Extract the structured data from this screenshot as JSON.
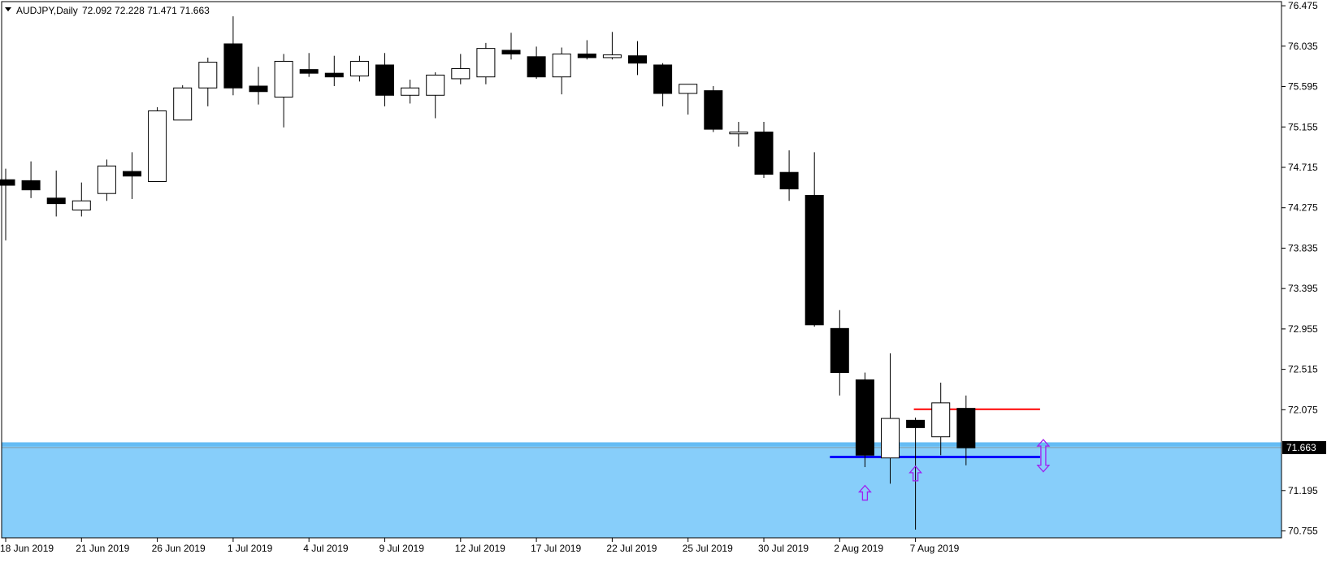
{
  "header": {
    "symbol": "AUDJPY,Daily",
    "ohlc": "72.092 72.228 71.471 71.663"
  },
  "colors": {
    "background": "#ffffff",
    "grid_frame": "#000000",
    "zone_fill": "#87cefa",
    "zone_edge": "#4fb0f0",
    "bull_body": "#ffffff",
    "bear_body": "#000000",
    "resistance_line": "#ff0000",
    "support_line": "#0000ff",
    "arrow_color": "#a020f0",
    "price_tag_bg": "#000000"
  },
  "chart_data": {
    "type": "candlestick",
    "ylim": [
      70.68,
      76.52
    ],
    "y_ticks": [
      "76.475",
      "76.035",
      "75.595",
      "75.155",
      "74.715",
      "74.275",
      "73.835",
      "73.395",
      "72.955",
      "72.515",
      "72.075",
      "71.663",
      "71.195",
      "70.755"
    ],
    "current_price": "71.663",
    "x_labels": [
      {
        "label": "18 Jun 2019",
        "index": 0
      },
      {
        "label": "21 Jun 2019",
        "index": 3
      },
      {
        "label": "26 Jun 2019",
        "index": 6
      },
      {
        "label": "1 Jul 2019",
        "index": 9
      },
      {
        "label": "4 Jul 2019",
        "index": 12
      },
      {
        "label": "9 Jul 2019",
        "index": 15
      },
      {
        "label": "12 Jul 2019",
        "index": 18
      },
      {
        "label": "17 Jul 2019",
        "index": 21
      },
      {
        "label": "22 Jul 2019",
        "index": 24
      },
      {
        "label": "25 Jul 2019",
        "index": 27
      },
      {
        "label": "30 Jul 2019",
        "index": 30
      },
      {
        "label": "2 Aug 2019",
        "index": 33
      },
      {
        "label": "7 Aug 2019",
        "index": 36
      }
    ],
    "candles": [
      {
        "o": 74.58,
        "h": 74.7,
        "l": 73.92,
        "c": 74.52
      },
      {
        "o": 74.57,
        "h": 74.78,
        "l": 74.38,
        "c": 74.47
      },
      {
        "o": 74.38,
        "h": 74.68,
        "l": 74.18,
        "c": 74.32
      },
      {
        "o": 74.25,
        "h": 74.55,
        "l": 74.18,
        "c": 74.35
      },
      {
        "o": 74.43,
        "h": 74.8,
        "l": 74.35,
        "c": 74.73
      },
      {
        "o": 74.67,
        "h": 74.88,
        "l": 74.37,
        "c": 74.62
      },
      {
        "o": 74.56,
        "h": 75.37,
        "l": 74.56,
        "c": 75.33
      },
      {
        "o": 75.23,
        "h": 75.61,
        "l": 75.23,
        "c": 75.58
      },
      {
        "o": 75.58,
        "h": 75.91,
        "l": 75.38,
        "c": 75.86
      },
      {
        "o": 76.06,
        "h": 76.36,
        "l": 75.5,
        "c": 75.58
      },
      {
        "o": 75.6,
        "h": 75.81,
        "l": 75.4,
        "c": 75.54
      },
      {
        "o": 75.48,
        "h": 75.95,
        "l": 75.15,
        "c": 75.87
      },
      {
        "o": 75.78,
        "h": 75.96,
        "l": 75.7,
        "c": 75.74
      },
      {
        "o": 75.74,
        "h": 75.93,
        "l": 75.6,
        "c": 75.7
      },
      {
        "o": 75.71,
        "h": 75.93,
        "l": 75.65,
        "c": 75.87
      },
      {
        "o": 75.83,
        "h": 75.96,
        "l": 75.38,
        "c": 75.5
      },
      {
        "o": 75.5,
        "h": 75.67,
        "l": 75.41,
        "c": 75.58
      },
      {
        "o": 75.5,
        "h": 75.75,
        "l": 75.25,
        "c": 75.72
      },
      {
        "o": 75.68,
        "h": 75.95,
        "l": 75.62,
        "c": 75.79
      },
      {
        "o": 75.7,
        "h": 76.07,
        "l": 75.62,
        "c": 76.01
      },
      {
        "o": 75.99,
        "h": 76.18,
        "l": 75.89,
        "c": 75.95
      },
      {
        "o": 75.92,
        "h": 76.03,
        "l": 75.68,
        "c": 75.7
      },
      {
        "o": 75.7,
        "h": 76.02,
        "l": 75.51,
        "c": 75.95
      },
      {
        "o": 75.95,
        "h": 76.1,
        "l": 75.89,
        "c": 75.91
      },
      {
        "o": 75.91,
        "h": 76.19,
        "l": 75.89,
        "c": 75.94
      },
      {
        "o": 75.93,
        "h": 76.09,
        "l": 75.72,
        "c": 75.85
      },
      {
        "o": 75.83,
        "h": 75.85,
        "l": 75.38,
        "c": 75.52
      },
      {
        "o": 75.52,
        "h": 75.6,
        "l": 75.29,
        "c": 75.62
      },
      {
        "o": 75.55,
        "h": 75.6,
        "l": 75.1,
        "c": 75.13
      },
      {
        "o": 75.08,
        "h": 75.21,
        "l": 74.94,
        "c": 75.1
      },
      {
        "o": 75.1,
        "h": 75.21,
        "l": 74.6,
        "c": 74.64
      },
      {
        "o": 74.66,
        "h": 74.9,
        "l": 74.35,
        "c": 74.48
      },
      {
        "o": 74.41,
        "h": 74.88,
        "l": 72.98,
        "c": 73.0
      },
      {
        "o": 72.96,
        "h": 73.16,
        "l": 72.23,
        "c": 72.48
      },
      {
        "o": 72.4,
        "h": 72.48,
        "l": 71.45,
        "c": 71.58
      },
      {
        "o": 71.55,
        "h": 72.69,
        "l": 71.27,
        "c": 71.98
      },
      {
        "o": 71.96,
        "h": 71.99,
        "l": 70.77,
        "c": 71.88
      },
      {
        "o": 71.78,
        "h": 72.37,
        "l": 71.58,
        "c": 72.15
      },
      {
        "o": 72.09,
        "h": 72.23,
        "l": 71.47,
        "c": 71.66
      }
    ],
    "demand_zone": {
      "top": 71.72,
      "bottom": 70.68
    },
    "resistance_level": {
      "price": 72.08,
      "from_index": 36,
      "to_index": 39
    },
    "support_level": {
      "price": 71.56,
      "from_index": 33,
      "to_index": 39
    },
    "up_arrows": [
      {
        "index": 34,
        "price": 71.25
      },
      {
        "index": 36,
        "price": 71.46
      }
    ],
    "double_arrow": {
      "index": 39,
      "top": 71.75,
      "bottom": 71.4
    }
  }
}
